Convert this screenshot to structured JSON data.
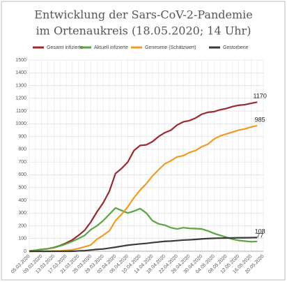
{
  "chart_data": {
    "type": "line",
    "title": "Entwicklung der Sars-CoV-2-Pandemie",
    "subtitle": "im Ortenaukreis (18.05.2020; 14 Uhr)",
    "categories": [
      "05.03.2020",
      null,
      "09.03.2020",
      null,
      "13.03.2020",
      null,
      "17.03.2020",
      null,
      "21.03.2020",
      null,
      "25.03.2020",
      null,
      "29.03.2020",
      null,
      "02.04.2020",
      null,
      "06.04.2020",
      null,
      "10.04.2020",
      null,
      "14.04.2020",
      null,
      "18.04.2020",
      null,
      "22.04.2020",
      null,
      "26.04.2020",
      null,
      "30.04.2020",
      null,
      "04.05.2020",
      null,
      "08.05.2020",
      null,
      "12.05.2020",
      null,
      "16.05.2020",
      null,
      "20.05.2020"
    ],
    "series": [
      {
        "name": "Gesamt infizierte",
        "color": "#9b2a2e",
        "values": [
          2,
          8,
          15,
          20,
          30,
          45,
          65,
          90,
          125,
          165,
          230,
          310,
          380,
          470,
          610,
          650,
          700,
          790,
          830,
          835,
          860,
          900,
          930,
          950,
          990,
          1015,
          1025,
          1045,
          1075,
          1090,
          1095,
          1110,
          1120,
          1135,
          1145,
          1150,
          1160,
          1170,
          null
        ]
      },
      {
        "name": "Aktuell infizierte",
        "color": "#5aa641",
        "values": [
          2,
          8,
          15,
          20,
          28,
          42,
          58,
          78,
          100,
          125,
          170,
          200,
          240,
          290,
          340,
          320,
          300,
          315,
          335,
          300,
          240,
          215,
          205,
          185,
          175,
          185,
          180,
          178,
          175,
          160,
          140,
          125,
          110,
          95,
          85,
          80,
          75,
          77,
          null
        ]
      },
      {
        "name": "Genesene (Schätzwert)",
        "color": "#f39a1f",
        "values": [
          0,
          0,
          0,
          0,
          2,
          3,
          7,
          12,
          22,
          35,
          50,
          95,
          125,
          160,
          240,
          290,
          350,
          420,
          480,
          530,
          590,
          640,
          685,
          710,
          740,
          750,
          775,
          790,
          820,
          840,
          880,
          905,
          920,
          935,
          950,
          960,
          975,
          985,
          null
        ]
      },
      {
        "name": "Gestorbene",
        "color": "#3a3a3a",
        "values": [
          0,
          0,
          0,
          0,
          0,
          0,
          0,
          0,
          3,
          5,
          10,
          15,
          18,
          25,
          32,
          40,
          48,
          53,
          58,
          62,
          68,
          73,
          78,
          80,
          84,
          88,
          90,
          93,
          97,
          100,
          102,
          103,
          104,
          105,
          106,
          106,
          107,
          108,
          null
        ]
      }
    ],
    "ylim": [
      0,
      1500
    ],
    "yticks": [
      0,
      100,
      200,
      300,
      400,
      500,
      600,
      700,
      800,
      900,
      1000,
      1100,
      1200,
      1300,
      1400,
      1500
    ],
    "grid": true,
    "legend": "top",
    "last_value_labels": true
  }
}
